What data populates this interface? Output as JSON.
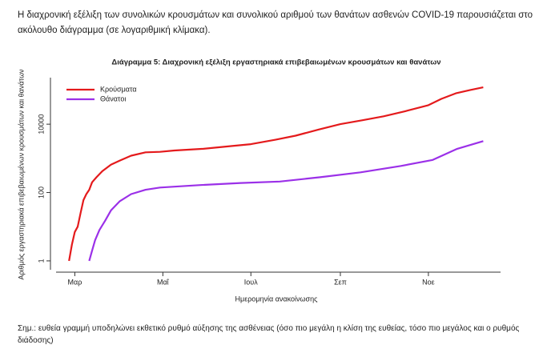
{
  "intro": "Η διαχρονική εξέλιξη των συνολικών κρουσμάτων και συνολικού αριθμού των θανάτων ασθενών COVID-19 παρουσιάζεται στο ακόλουθο διάγραμμα (σε λογαριθμική κλίμακα).",
  "chart_data": {
    "type": "line",
    "title": "Διάγραμμα 5: Διαχρονική εξέλιξη εργαστηριακά επιβεβαιωμένων κρουσμάτων και θανάτων",
    "xlabel": "Ημερομηνία ανακοίνωσης",
    "ylabel": "Αριθμός εργαστηριακά επιβεβαιωμένων κρουσμάτων και θανάτων",
    "log_y": true,
    "legend": "top-left",
    "xlim": [
      48,
      356
    ],
    "xticks": [
      {
        "value": 61,
        "label": "Μαρ"
      },
      {
        "value": 122,
        "label": "Μαΐ"
      },
      {
        "value": 183,
        "label": "Ιουλ"
      },
      {
        "value": 245,
        "label": "Σεπ"
      },
      {
        "value": 306,
        "label": "Νοε"
      }
    ],
    "ylim": [
      0.55,
      230000
    ],
    "yticks": [
      1,
      100,
      10000
    ],
    "series": [
      {
        "name": "Κρούσματα",
        "color": "#e41a1c",
        "x": [
          57,
          59,
          61,
          63,
          65,
          67,
          69,
          71,
          73,
          76,
          80,
          86,
          92,
          100,
          110,
          120,
          130,
          150,
          170,
          183,
          200,
          214,
          230,
          245,
          260,
          275,
          290,
          306,
          315,
          325,
          335,
          344
        ],
        "values": [
          1,
          3,
          7,
          10,
          25,
          60,
          90,
          120,
          200,
          280,
          420,
          650,
          850,
          1200,
          1500,
          1550,
          1700,
          1900,
          2300,
          2600,
          3500,
          4600,
          7000,
          10000,
          13000,
          17000,
          24000,
          36000,
          55000,
          80000,
          100000,
          120000
        ]
      },
      {
        "name": "Θάνατοι",
        "color": "#9b30e8",
        "x": [
          71,
          73,
          75,
          78,
          82,
          86,
          92,
          100,
          110,
          120,
          148,
          176,
          203,
          231,
          259,
          287,
          309,
          326,
          344
        ],
        "values": [
          1,
          2,
          4,
          8,
          15,
          30,
          55,
          90,
          120,
          140,
          165,
          190,
          210,
          280,
          390,
          600,
          900,
          1900,
          3200
        ]
      }
    ]
  },
  "note": "Σημ.: ευθεία γραμμή υποδηλώνει εκθετικό ρυθμό αύξησης της ασθένειας (όσο πιο μεγάλη η κλίση της ευθείας, τόσο πιο μεγάλος και ο ρυθμός διάδοσης)"
}
